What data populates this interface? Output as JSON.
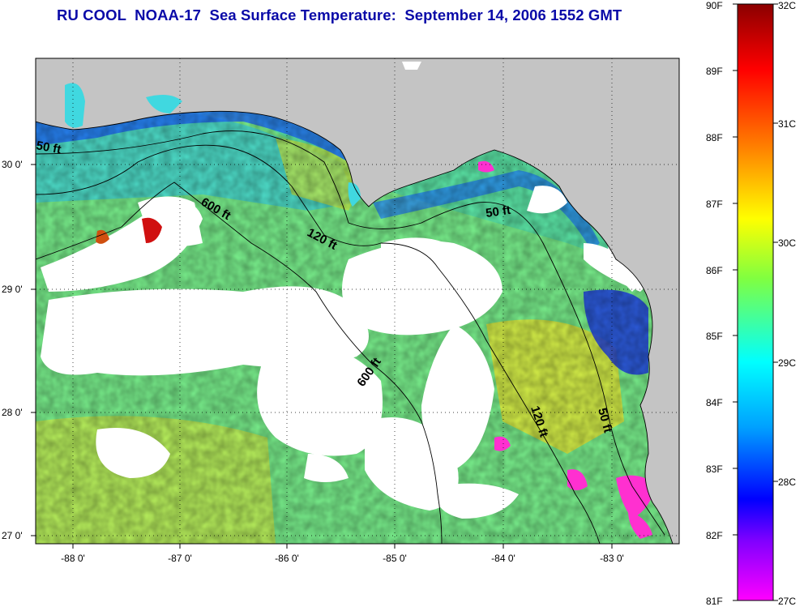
{
  "title": "RU COOL  NOAA-17  Sea Surface Temperature:  September 14, 2006 1552 GMT",
  "map": {
    "lon_ticks": [
      "-88 0'",
      "-87 0'",
      "-86 0'",
      "-85 0'",
      "-84 0'",
      "-83 0'"
    ],
    "lat_ticks": [
      "30 0'",
      "29 0'",
      "28 0'",
      "27 0'"
    ],
    "isobaths": [
      {
        "id": "50ft-west",
        "label": "50 ft"
      },
      {
        "id": "50ft-east",
        "label": "50 ft"
      },
      {
        "id": "50ft-south",
        "label": "50 ft"
      },
      {
        "id": "120ft-north",
        "label": "120 ft"
      },
      {
        "id": "120ft-south",
        "label": "120 ft"
      },
      {
        "id": "600ft-north",
        "label": "600 ft"
      },
      {
        "id": "600ft-south",
        "label": "600 ft"
      }
    ],
    "colors": {
      "land": "#c4c4c4",
      "cloud": "#ffffff"
    }
  },
  "colorbar": {
    "fahrenheit": [
      "90F",
      "89F",
      "88F",
      "87F",
      "86F",
      "85F",
      "84F",
      "83F",
      "82F",
      "81F"
    ],
    "celsius": [
      "32C",
      "31C",
      "30C",
      "29C",
      "28C",
      "27C"
    ],
    "stops": [
      "#8b0000",
      "#ff0000",
      "#ff8000",
      "#ffff00",
      "#80ff40",
      "#00ffff",
      "#00a0ff",
      "#0000ff",
      "#8000ff",
      "#ff00ff"
    ]
  }
}
